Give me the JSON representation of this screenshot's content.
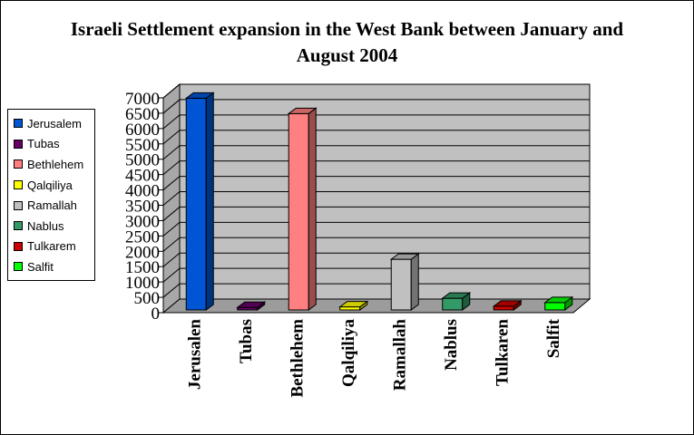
{
  "chart_data": {
    "type": "bar",
    "title": "Israeli Settlement expansion in the West Bank between January and August 2004",
    "categories": [
      "Jerusalem",
      "Tubas",
      "Bethlehem",
      "Qalqiliya",
      "Ramallah",
      "Nablus",
      "Tulkarem",
      "Salfit"
    ],
    "tick_labels": [
      "Jerusalen",
      "Tubas",
      "Bethlehem",
      "Qalqiliya",
      "Ramallah",
      "Nablus",
      "Tulkaren",
      "Salfit"
    ],
    "values": [
      6900,
      80,
      6400,
      100,
      1650,
      380,
      120,
      240
    ],
    "colors": [
      "#0055D4",
      "#660066",
      "#FF8080",
      "#FFFF00",
      "#C0C0C0",
      "#339966",
      "#CC0000",
      "#00FF00"
    ],
    "ylim": [
      0,
      7000
    ],
    "yticks": [
      0,
      500,
      1000,
      1500,
      2000,
      2500,
      3000,
      3500,
      4000,
      4500,
      5000,
      5500,
      6000,
      6500,
      7000
    ],
    "xlabel": "",
    "ylabel": "",
    "grid": true,
    "legend": "left",
    "three_d": true,
    "wall_color": "#C0C0C0"
  }
}
